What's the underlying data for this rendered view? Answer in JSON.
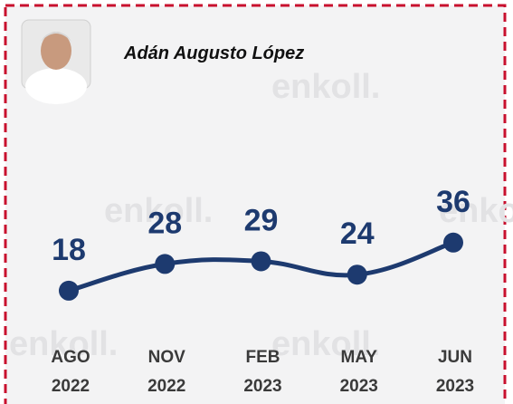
{
  "chart_data": {
    "type": "line",
    "title": "Adán Augusto López",
    "watermark": "enkoll.",
    "categories": [
      "AGO\n2022",
      "NOV\n2022",
      "FEB\n2023",
      "MAY\n2023",
      "JUN\n2023"
    ],
    "values": [
      18,
      28,
      29,
      24,
      36
    ],
    "color": "#1d3a6f",
    "ylim": [
      0,
      60
    ]
  }
}
